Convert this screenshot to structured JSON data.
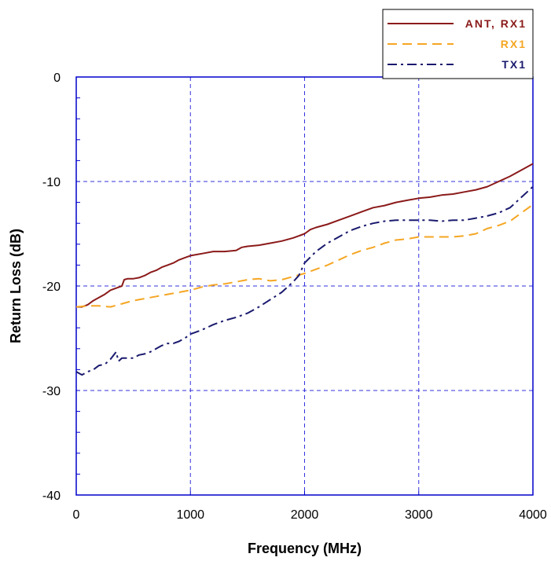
{
  "chart_data": {
    "type": "line",
    "xlabel": "Frequency (MHz)",
    "ylabel": "Return Loss (dB)",
    "xlim": [
      0,
      4000
    ],
    "ylim": [
      -40,
      0
    ],
    "xticks": [
      0,
      1000,
      2000,
      3000,
      4000
    ],
    "yticks": [
      0,
      -10,
      -20,
      -30,
      -40
    ],
    "grid": true,
    "legend_position": "top-right",
    "series": [
      {
        "name": "ANT, RX1",
        "color": "#8b1a1a",
        "dash": "solid",
        "x": [
          0,
          50,
          100,
          150,
          200,
          250,
          300,
          350,
          400,
          420,
          450,
          500,
          550,
          600,
          650,
          700,
          750,
          800,
          850,
          900,
          950,
          1000,
          1100,
          1200,
          1300,
          1400,
          1450,
          1500,
          1600,
          1700,
          1800,
          1900,
          2000,
          2050,
          2100,
          2200,
          2300,
          2400,
          2500,
          2600,
          2700,
          2800,
          2900,
          3000,
          3100,
          3200,
          3300,
          3400,
          3500,
          3600,
          3700,
          3800,
          3900,
          4000
        ],
        "values": [
          -22.0,
          -22.0,
          -21.8,
          -21.4,
          -21.1,
          -20.8,
          -20.4,
          -20.2,
          -20.0,
          -19.4,
          -19.3,
          -19.3,
          -19.2,
          -19.0,
          -18.7,
          -18.5,
          -18.2,
          -18.0,
          -17.8,
          -17.5,
          -17.3,
          -17.1,
          -16.9,
          -16.7,
          -16.7,
          -16.6,
          -16.3,
          -16.2,
          -16.1,
          -15.9,
          -15.7,
          -15.4,
          -15.0,
          -14.6,
          -14.4,
          -14.1,
          -13.7,
          -13.3,
          -12.9,
          -12.5,
          -12.3,
          -12.0,
          -11.8,
          -11.6,
          -11.5,
          -11.3,
          -11.2,
          -11.0,
          -10.8,
          -10.5,
          -10.0,
          -9.5,
          -8.9,
          -8.3
        ]
      },
      {
        "name": "RX1",
        "color": "#f5a623",
        "dash": "dashed",
        "x": [
          0,
          100,
          200,
          300,
          400,
          500,
          600,
          700,
          800,
          900,
          1000,
          1100,
          1200,
          1300,
          1400,
          1500,
          1600,
          1700,
          1800,
          1900,
          2000,
          2100,
          2200,
          2300,
          2400,
          2500,
          2600,
          2700,
          2800,
          2900,
          3000,
          3100,
          3200,
          3300,
          3400,
          3500,
          3600,
          3700,
          3800,
          3900,
          4000
        ],
        "values": [
          -22.0,
          -21.9,
          -21.9,
          -22.0,
          -21.7,
          -21.4,
          -21.2,
          -21.0,
          -20.8,
          -20.6,
          -20.4,
          -20.1,
          -19.9,
          -19.8,
          -19.6,
          -19.4,
          -19.3,
          -19.5,
          -19.4,
          -19.1,
          -18.8,
          -18.4,
          -18.0,
          -17.5,
          -17.0,
          -16.6,
          -16.3,
          -15.9,
          -15.6,
          -15.5,
          -15.3,
          -15.3,
          -15.3,
          -15.3,
          -15.2,
          -15.0,
          -14.5,
          -14.2,
          -13.8,
          -13.0,
          -12.2
        ]
      },
      {
        "name": "TX1",
        "color": "#1a1a6e",
        "dash": "dashdot",
        "x": [
          0,
          50,
          100,
          150,
          200,
          250,
          300,
          350,
          370,
          400,
          450,
          500,
          550,
          600,
          650,
          700,
          750,
          800,
          850,
          900,
          950,
          1000,
          1100,
          1200,
          1300,
          1400,
          1500,
          1600,
          1700,
          1800,
          1900,
          1950,
          2000,
          2100,
          2200,
          2300,
          2400,
          2500,
          2600,
          2700,
          2800,
          2900,
          3000,
          3100,
          3200,
          3300,
          3400,
          3500,
          3600,
          3700,
          3800,
          3900,
          4000
        ],
        "values": [
          -28.2,
          -28.5,
          -28.2,
          -28.0,
          -27.6,
          -27.5,
          -27.0,
          -26.3,
          -27.2,
          -26.9,
          -26.9,
          -26.9,
          -26.6,
          -26.5,
          -26.3,
          -26.0,
          -25.7,
          -25.5,
          -25.5,
          -25.3,
          -25.0,
          -24.6,
          -24.2,
          -23.7,
          -23.3,
          -23.0,
          -22.6,
          -22.0,
          -21.3,
          -20.6,
          -19.6,
          -19.0,
          -17.8,
          -16.7,
          -15.9,
          -15.3,
          -14.7,
          -14.3,
          -14.0,
          -13.8,
          -13.7,
          -13.7,
          -13.7,
          -13.7,
          -13.8,
          -13.7,
          -13.7,
          -13.5,
          -13.3,
          -13.0,
          -12.5,
          -11.5,
          -10.5
        ]
      }
    ]
  }
}
